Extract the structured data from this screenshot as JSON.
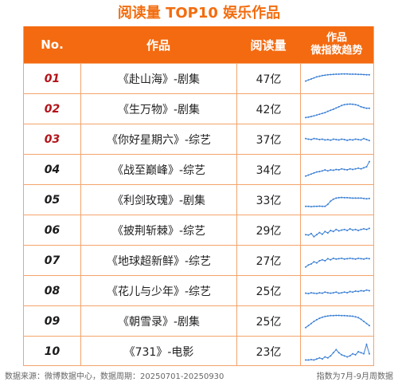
{
  "title": "阅读量 TOP10 娱乐作品",
  "header": {
    "no": "No.",
    "name": "作品",
    "read": "阅读量",
    "trend_line1": "作品",
    "trend_line2": "微指数趋势"
  },
  "colors": {
    "accent": "#f46a10",
    "title": "#f26d10",
    "rank_top": "#b3131a",
    "trend_line": "#3a7fd5"
  },
  "chart_data": {
    "type": "table",
    "columns": [
      "No.",
      "作品",
      "阅读量",
      "作品微指数趋势"
    ],
    "rows": [
      {
        "no": "01",
        "name": "《赴山海》-剧集",
        "read": "47亿",
        "trend": [
          0.4,
          0.45,
          0.5,
          0.55,
          0.6,
          0.63,
          0.66,
          0.68,
          0.7,
          0.71,
          0.72,
          0.73,
          0.73,
          0.74,
          0.74,
          0.74,
          0.73,
          0.73,
          0.73,
          0.72,
          0.72,
          0.71,
          0.7,
          0.7
        ]
      },
      {
        "no": "02",
        "name": "《生万物》-剧集",
        "read": "42亿",
        "trend": [
          0.1,
          0.12,
          0.15,
          0.18,
          0.22,
          0.26,
          0.3,
          0.34,
          0.4,
          0.45,
          0.5,
          0.56,
          0.62,
          0.68,
          0.72,
          0.74,
          0.75,
          0.74,
          0.72,
          0.68,
          0.62,
          0.58,
          0.55,
          0.55
        ]
      },
      {
        "no": "03",
        "name": "《你好星期六》-综艺",
        "read": "37亿",
        "trend": [
          0.55,
          0.52,
          0.5,
          0.55,
          0.53,
          0.5,
          0.52,
          0.48,
          0.5,
          0.47,
          0.52,
          0.5,
          0.48,
          0.52,
          0.5,
          0.46,
          0.5,
          0.48,
          0.52,
          0.5,
          0.48,
          0.55,
          0.5,
          0.45
        ]
      },
      {
        "no": "04",
        "name": "《战至巅峰》-综艺",
        "read": "34亿",
        "trend": [
          0.2,
          0.25,
          0.3,
          0.35,
          0.4,
          0.42,
          0.45,
          0.5,
          0.45,
          0.5,
          0.48,
          0.52,
          0.5,
          0.55,
          0.52,
          0.5,
          0.55,
          0.52,
          0.55,
          0.58,
          0.55,
          0.6,
          0.65,
          0.9
        ]
      },
      {
        "no": "05",
        "name": "《利剑玫瑰》-剧集",
        "read": "33亿",
        "trend": [
          0.2,
          0.2,
          0.19,
          0.2,
          0.2,
          0.21,
          0.2,
          0.2,
          0.3,
          0.45,
          0.55,
          0.6,
          0.62,
          0.63,
          0.62,
          0.62,
          0.61,
          0.6,
          0.6,
          0.6,
          0.6,
          0.58,
          0.57,
          0.58
        ]
      },
      {
        "no": "06",
        "name": "《披荆斩棘》-综艺",
        "read": "29亿",
        "trend": [
          0.3,
          0.28,
          0.35,
          0.2,
          0.3,
          0.4,
          0.32,
          0.45,
          0.38,
          0.5,
          0.45,
          0.55,
          0.48,
          0.52,
          0.55,
          0.5,
          0.58,
          0.52,
          0.55,
          0.5,
          0.55,
          0.58,
          0.55,
          0.6
        ]
      },
      {
        "no": "07",
        "name": "《地球超新鲜》-综艺",
        "read": "27亿",
        "trend": [
          0.2,
          0.3,
          0.35,
          0.45,
          0.4,
          0.5,
          0.55,
          0.5,
          0.6,
          0.55,
          0.62,
          0.58,
          0.6,
          0.62,
          0.58,
          0.6,
          0.62,
          0.6,
          0.58,
          0.62,
          0.6,
          0.58,
          0.62,
          0.6
        ]
      },
      {
        "no": "08",
        "name": "《花儿与少年》-综艺",
        "read": "25亿",
        "trend": [
          0.4,
          0.38,
          0.42,
          0.4,
          0.38,
          0.42,
          0.4,
          0.45,
          0.42,
          0.4,
          0.42,
          0.45,
          0.4,
          0.42,
          0.45,
          0.42,
          0.48,
          0.45,
          0.5,
          0.48,
          0.52,
          0.5,
          0.55,
          0.52
        ]
      },
      {
        "no": "09",
        "name": "《朝雪录》-剧集",
        "read": "25亿",
        "trend": [
          0.2,
          0.3,
          0.4,
          0.5,
          0.58,
          0.65,
          0.7,
          0.74,
          0.76,
          0.78,
          0.78,
          0.79,
          0.79,
          0.78,
          0.78,
          0.77,
          0.76,
          0.75,
          0.72,
          0.68,
          0.6,
          0.5,
          0.4,
          0.3
        ]
      },
      {
        "no": "10",
        "name": "《731》-电影",
        "read": "23亿",
        "trend": [
          0.1,
          0.1,
          0.12,
          0.1,
          0.15,
          0.2,
          0.15,
          0.25,
          0.2,
          0.3,
          0.45,
          0.6,
          0.45,
          0.35,
          0.3,
          0.25,
          0.3,
          0.4,
          0.35,
          0.5,
          0.45,
          0.4,
          0.85,
          0.4
        ]
      }
    ]
  },
  "footer": {
    "left": "数据来源：微博数据中心，数据周期：20250701-20250930",
    "right": "指数为7月-9月周数据"
  }
}
